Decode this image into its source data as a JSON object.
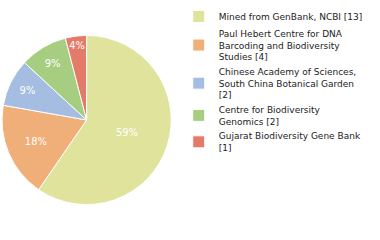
{
  "chart_data": {
    "type": "pie",
    "categories": [
      "Mined from GenBank, NCBI [13]",
      "Paul Hebert Centre for DNA Barcoding and Biodiversity Studies [4]",
      "Chinese Academy of Sciences, South China Botanical Garden [2]",
      "Centre for Biodiversity Genomics [2]",
      "Gujarat Biodiversity Gene Bank [1]"
    ],
    "values": [
      59,
      18,
      9,
      9,
      4
    ],
    "value_labels": [
      "59%",
      "18%",
      "9%",
      "9%",
      "4%"
    ],
    "colors": [
      "#dfe39c",
      "#f0ae78",
      "#a4bde0",
      "#a6cd80",
      "#e47b68"
    ],
    "data_labels": true,
    "legend": "right"
  }
}
